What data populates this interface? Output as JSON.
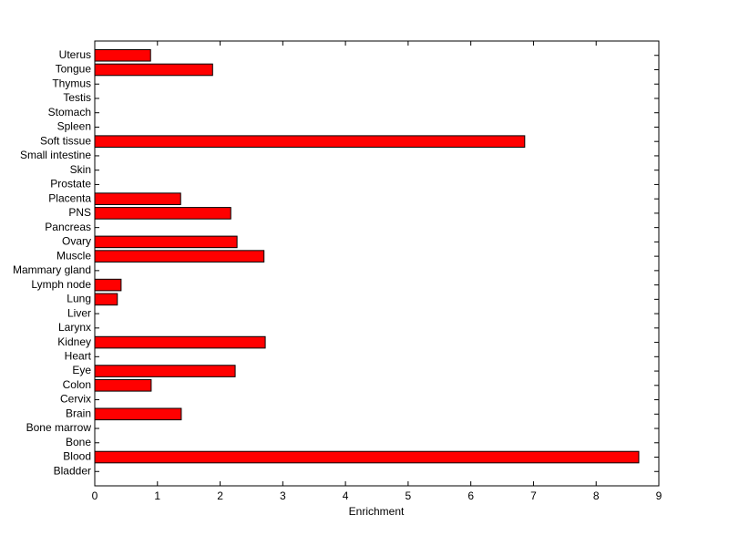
{
  "chart_data": {
    "type": "barh",
    "xlabel": "Enrichment",
    "categories": [
      "Bladder",
      "Blood",
      "Bone",
      "Bone marrow",
      "Brain",
      "Cervix",
      "Colon",
      "Eye",
      "Heart",
      "Kidney",
      "Larynx",
      "Liver",
      "Lung",
      "Lymph node",
      "Mammary gland",
      "Muscle",
      "Ovary",
      "Pancreas",
      "PNS",
      "Placenta",
      "Prostate",
      "Skin",
      "Small intestine",
      "Soft tissue",
      "Spleen",
      "Stomach",
      "Testis",
      "Thymus",
      "Tongue",
      "Uterus"
    ],
    "values": [
      0,
      8.68,
      0,
      0,
      1.38,
      0,
      0.9,
      2.24,
      0,
      2.72,
      0,
      0,
      0.36,
      0.42,
      0,
      2.7,
      2.27,
      0,
      2.17,
      1.37,
      0,
      0,
      0,
      6.86,
      0,
      0,
      0,
      0,
      1.88,
      0.89
    ],
    "color": "#ff0000",
    "xlim": [
      0,
      9
    ],
    "xticks": [
      0,
      1,
      2,
      3,
      4,
      5,
      6,
      7,
      8,
      9
    ]
  }
}
